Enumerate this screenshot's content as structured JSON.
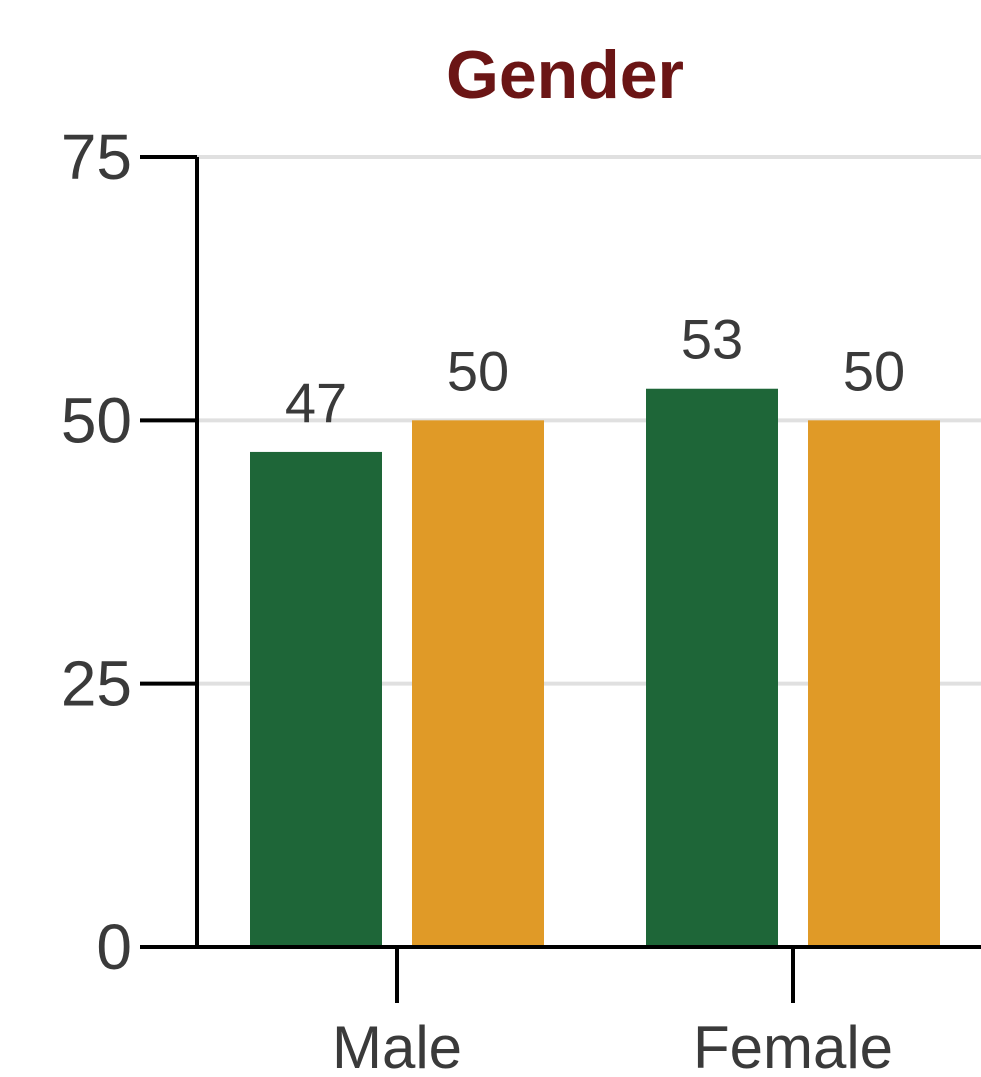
{
  "chart_data": {
    "type": "bar",
    "title": "Gender",
    "categories": [
      "Male",
      "Female"
    ],
    "series": [
      {
        "values": [
          47,
          53
        ],
        "color": "#1e6638"
      },
      {
        "values": [
          50,
          50
        ],
        "color": "#e09a27"
      }
    ],
    "ylim": [
      0,
      75
    ],
    "yticks": [
      0,
      25,
      50,
      75
    ],
    "grid": true,
    "colors": {
      "title": "#6b1515",
      "grid": "#e0e0e0",
      "axis": "#000000",
      "text": "#3a3a3a"
    }
  }
}
